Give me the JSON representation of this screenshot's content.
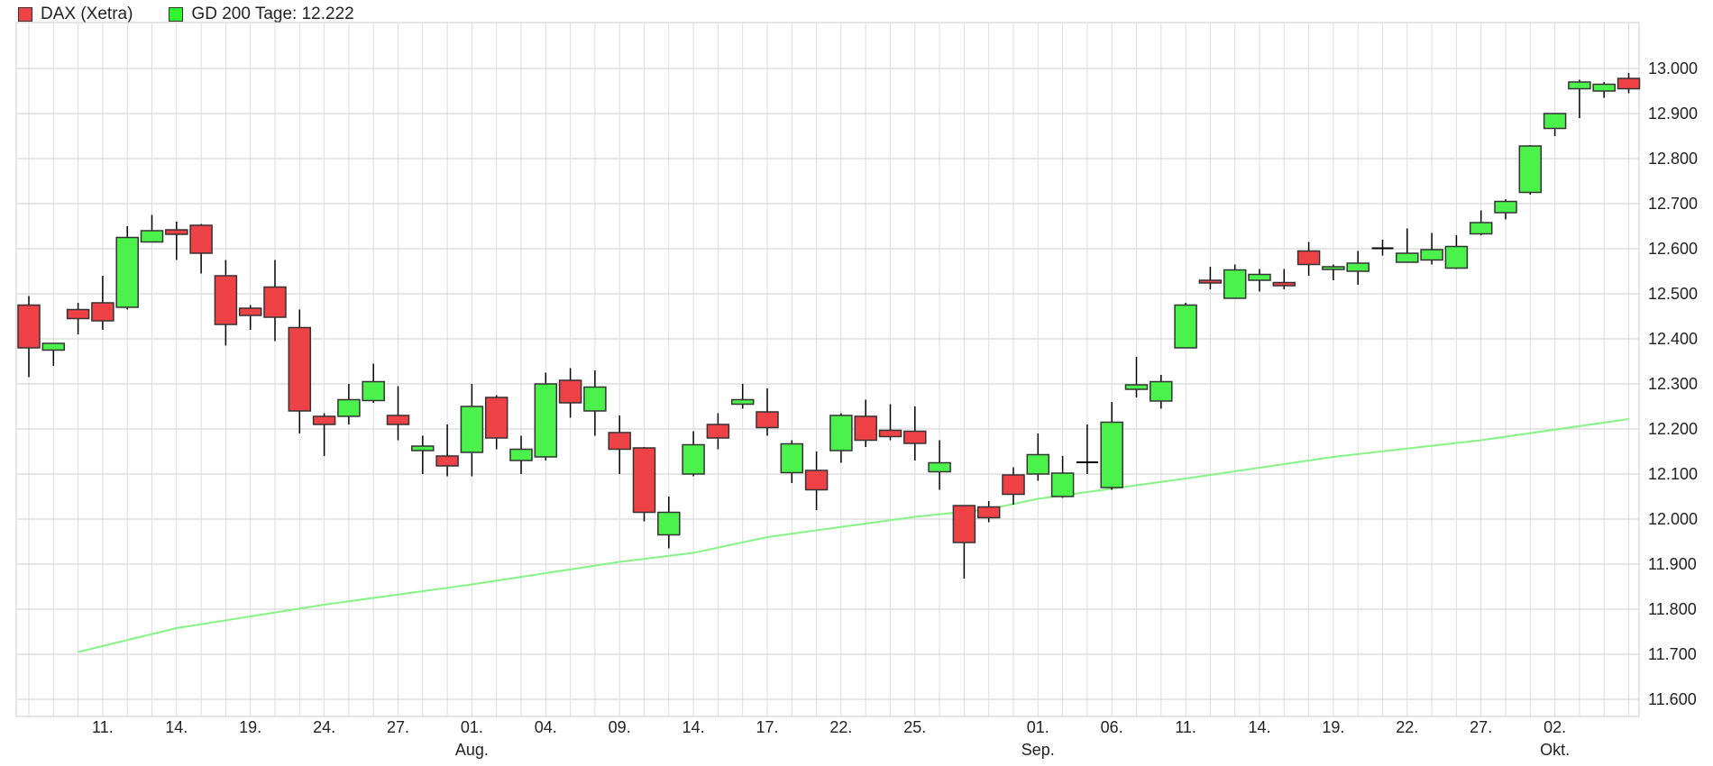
{
  "legend": {
    "series_label": "DAX (Xetra)",
    "ma_label": "GD 200 Tage: 12.222"
  },
  "colors": {
    "up": "#4cf24c",
    "down": "#ef4247",
    "ma": "#86f586",
    "legend_ma": "#2ef52e",
    "grid": "#dddddd"
  },
  "chart_data": {
    "type": "candlestick",
    "title": "",
    "ylim": [
      11560,
      13070
    ],
    "yticks": [
      11600,
      11700,
      11800,
      11900,
      12000,
      12100,
      12200,
      12300,
      12400,
      12500,
      12600,
      12700,
      12800,
      12900,
      13000
    ],
    "ytick_labels": [
      "11.600",
      "11.700",
      "11.800",
      "11.900",
      "12.000",
      "12.100",
      "12.200",
      "12.300",
      "12.400",
      "12.500",
      "12.600",
      "12.700",
      "12.800",
      "12.900",
      "13.000"
    ],
    "xticks": [
      {
        "i": 3,
        "label": "11."
      },
      {
        "i": 6,
        "label": "14."
      },
      {
        "i": 9,
        "label": "19."
      },
      {
        "i": 12,
        "label": "24."
      },
      {
        "i": 15,
        "label": "27."
      },
      {
        "i": 18,
        "label": "01.",
        "month": "Aug."
      },
      {
        "i": 21,
        "label": "04."
      },
      {
        "i": 24,
        "label": "09."
      },
      {
        "i": 27,
        "label": "14."
      },
      {
        "i": 30,
        "label": "17."
      },
      {
        "i": 33,
        "label": "22."
      },
      {
        "i": 36,
        "label": "25."
      },
      {
        "i": 41,
        "label": "01.",
        "month": "Sep."
      },
      {
        "i": 44,
        "label": "06."
      },
      {
        "i": 47,
        "label": "11."
      },
      {
        "i": 50,
        "label": "14."
      },
      {
        "i": 53,
        "label": "19."
      },
      {
        "i": 56,
        "label": "22."
      },
      {
        "i": 59,
        "label": "27."
      },
      {
        "i": 62,
        "label": "02.",
        "month": "Okt."
      }
    ],
    "ohlc": [
      [
        12475,
        12495,
        12315,
        12380
      ],
      [
        12375,
        12390,
        12340,
        12390
      ],
      [
        12465,
        12480,
        12410,
        12445
      ],
      [
        12480,
        12540,
        12420,
        12440
      ],
      [
        12470,
        12650,
        12465,
        12625
      ],
      [
        12615,
        12675,
        12615,
        12640
      ],
      [
        12642,
        12660,
        12575,
        12632
      ],
      [
        12652,
        12655,
        12545,
        12590
      ],
      [
        12540,
        12575,
        12385,
        12432
      ],
      [
        12468,
        12475,
        12420,
        12452
      ],
      [
        12515,
        12575,
        12395,
        12448
      ],
      [
        12425,
        12465,
        12190,
        12240
      ],
      [
        12228,
        12235,
        12140,
        12210
      ],
      [
        12228,
        12300,
        12210,
        12265
      ],
      [
        12263,
        12345,
        12258,
        12305
      ],
      [
        12230,
        12295,
        12175,
        12210
      ],
      [
        12152,
        12185,
        12100,
        12162
      ],
      [
        12140,
        12210,
        12095,
        12118
      ],
      [
        12148,
        12300,
        12095,
        12250
      ],
      [
        12270,
        12275,
        12155,
        12180
      ],
      [
        12130,
        12185,
        12100,
        12155
      ],
      [
        12138,
        12325,
        12130,
        12300
      ],
      [
        12308,
        12335,
        12225,
        12258
      ],
      [
        12240,
        12330,
        12185,
        12293
      ],
      [
        12192,
        12230,
        12100,
        12155
      ],
      [
        12158,
        12160,
        11995,
        12015
      ],
      [
        11965,
        12050,
        11935,
        12015
      ],
      [
        12100,
        12195,
        12095,
        12165
      ],
      [
        12210,
        12235,
        12155,
        12180
      ],
      [
        12255,
        12300,
        12245,
        12265
      ],
      [
        12238,
        12290,
        12185,
        12203
      ],
      [
        12103,
        12175,
        12080,
        12167
      ],
      [
        12108,
        12150,
        12020,
        12065
      ],
      [
        12152,
        12235,
        12125,
        12230
      ],
      [
        12228,
        12265,
        12160,
        12175
      ],
      [
        12197,
        12255,
        12175,
        12183
      ],
      [
        12195,
        12250,
        12130,
        12168
      ],
      [
        12105,
        12175,
        12065,
        12125
      ],
      [
        12030,
        12030,
        11868,
        11948
      ],
      [
        12027,
        12040,
        11993,
        12003
      ],
      [
        12098,
        12115,
        12032,
        12055
      ],
      [
        12100,
        12190,
        12085,
        12143
      ],
      [
        12050,
        12140,
        12047,
        12102
      ],
      [
        12125,
        12210,
        12100,
        12126
      ],
      [
        12070,
        12260,
        12065,
        12215
      ],
      [
        12288,
        12360,
        12270,
        12298
      ],
      [
        12262,
        12320,
        12245,
        12305
      ],
      [
        12380,
        12480,
        12380,
        12475
      ],
      [
        12530,
        12560,
        12510,
        12525
      ],
      [
        12490,
        12565,
        12490,
        12553
      ],
      [
        12530,
        12555,
        12505,
        12543
      ],
      [
        12525,
        12555,
        12510,
        12518
      ],
      [
        12595,
        12615,
        12540,
        12565
      ],
      [
        12557,
        12565,
        12530,
        12560
      ],
      [
        12550,
        12595,
        12520,
        12568
      ],
      [
        12600,
        12620,
        12585,
        12601
      ],
      [
        12570,
        12645,
        12570,
        12590
      ],
      [
        12575,
        12635,
        12565,
        12598
      ],
      [
        12557,
        12630,
        12555,
        12605
      ],
      [
        12633,
        12685,
        12630,
        12658
      ],
      [
        12680,
        12710,
        12665,
        12705
      ],
      [
        12725,
        12830,
        12720,
        12828
      ],
      [
        12867,
        12900,
        12850,
        12900
      ],
      [
        12955,
        12975,
        12890,
        12970
      ],
      [
        12950,
        12970,
        12935,
        12965
      ],
      [
        12978,
        12990,
        12945,
        12955
      ]
    ],
    "ma200": [
      [
        2,
        11705
      ],
      [
        6,
        11758
      ],
      [
        12,
        11810
      ],
      [
        18,
        11855
      ],
      [
        24,
        11905
      ],
      [
        27,
        11925
      ],
      [
        30,
        11960
      ],
      [
        36,
        12005
      ],
      [
        39,
        12022
      ],
      [
        41,
        12045
      ],
      [
        47,
        12090
      ],
      [
        53,
        12138
      ],
      [
        59,
        12175
      ],
      [
        65,
        12222
      ]
    ]
  }
}
